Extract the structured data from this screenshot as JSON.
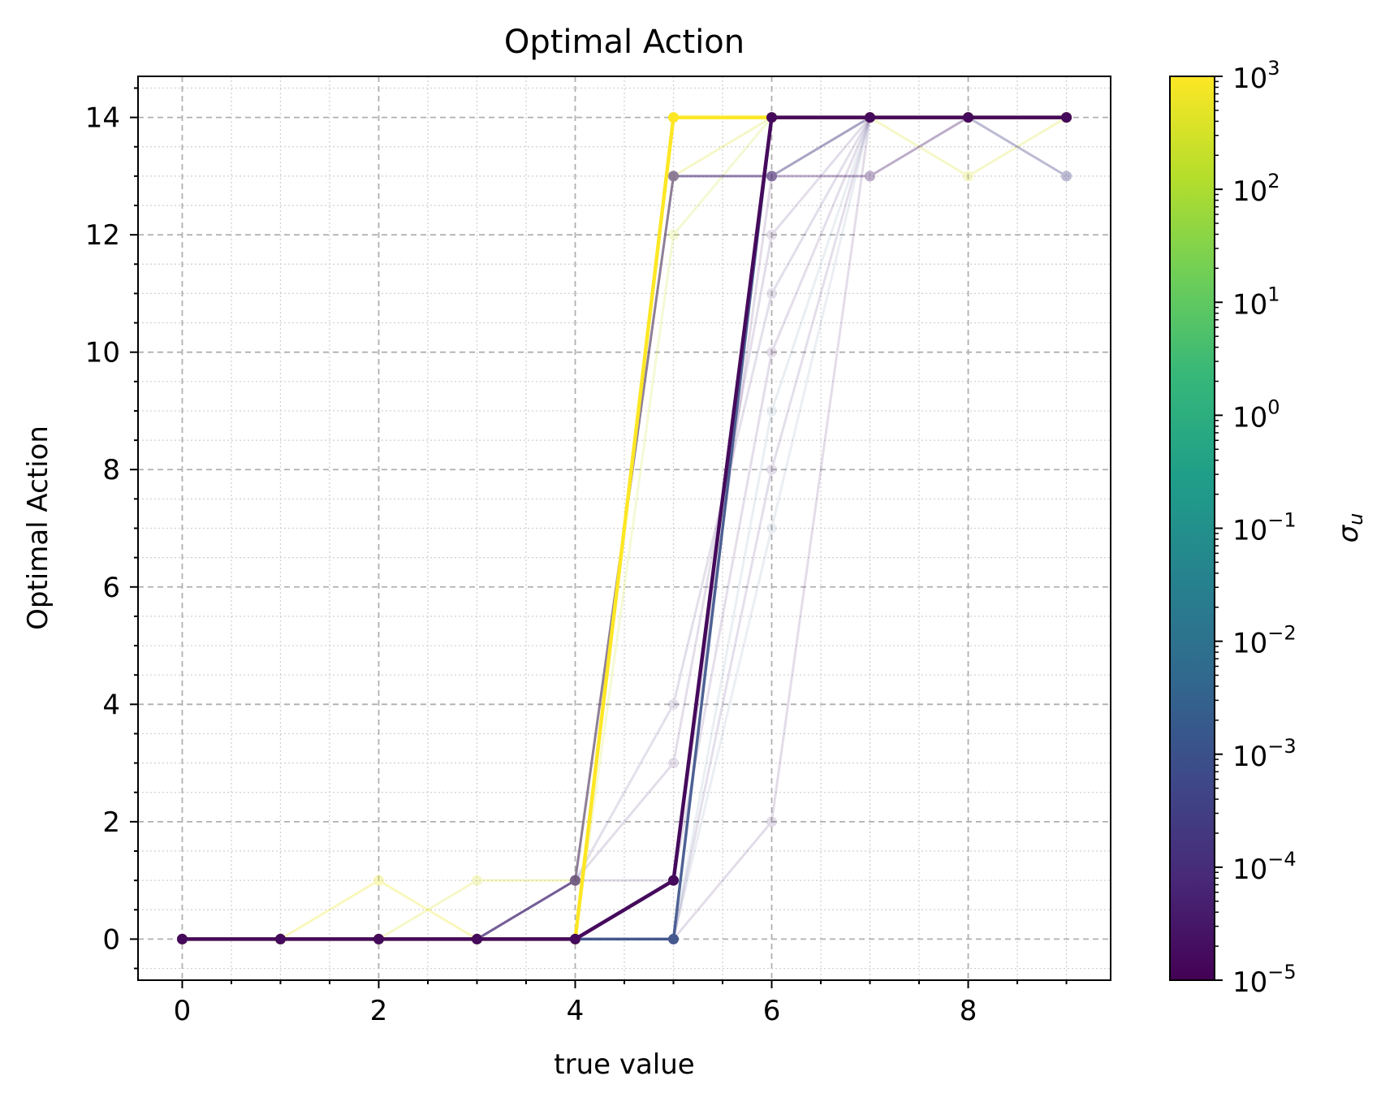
{
  "chart_data": {
    "type": "line",
    "title": "Optimal Action",
    "xlabel": "true value",
    "ylabel": "Optimal Action",
    "xlim": [
      -0.45,
      9.45
    ],
    "ylim": [
      -0.7,
      14.7
    ],
    "xticks": [
      0,
      2,
      4,
      6,
      8
    ],
    "yticks": [
      0,
      2,
      4,
      6,
      8,
      10,
      12,
      14
    ],
    "grid": {
      "major": "dashed",
      "minor": "dotted"
    },
    "colorbar": {
      "label": "σ_u",
      "label_main": "σ",
      "label_sub": "u",
      "scale": "log",
      "colormap": "viridis",
      "range": [
        1e-05,
        1000
      ],
      "tick_exponents": [
        "3",
        "2",
        "1",
        "0",
        "−1",
        "−2",
        "−3",
        "−4",
        "−5"
      ],
      "tick_base": "10",
      "colors": [
        "#440154",
        "#482878",
        "#3e4989",
        "#31688e",
        "#26828e",
        "#1f9e89",
        "#35b779",
        "#6ece58",
        "#b5de2b",
        "#fde725"
      ]
    },
    "x": [
      0,
      1,
      2,
      3,
      4,
      5,
      6,
      7,
      8,
      9
    ],
    "series": [
      {
        "log_sigma": 3,
        "opacity": 1.0,
        "width": 4.5,
        "values": [
          0,
          0,
          0,
          0,
          0,
          14,
          14,
          14,
          14,
          14
        ]
      },
      {
        "log_sigma": 2.8,
        "opacity": 0.3,
        "width": 3,
        "values": [
          0,
          0,
          1,
          0,
          0,
          14,
          14,
          14,
          14,
          14
        ]
      },
      {
        "log_sigma": 2.6,
        "opacity": 0.25,
        "width": 3,
        "values": [
          0,
          0,
          0,
          1,
          1,
          13,
          14,
          14,
          13,
          14
        ]
      },
      {
        "log_sigma": 2.4,
        "opacity": 0.2,
        "width": 3,
        "values": [
          0,
          0,
          0,
          0,
          0,
          12,
          14,
          14,
          14,
          14
        ]
      },
      {
        "log_sigma": -3.5,
        "opacity": 0.35,
        "width": 3,
        "values": [
          0,
          0,
          0,
          0,
          1,
          13,
          13,
          14,
          14,
          13
        ]
      },
      {
        "log_sigma": -4.5,
        "opacity": 0.35,
        "width": 3,
        "values": [
          0,
          0,
          0,
          0,
          1,
          13,
          13,
          13,
          14,
          14
        ]
      },
      {
        "log_sigma": -4.2,
        "opacity": 0.15,
        "width": 3,
        "values": [
          0,
          0,
          0,
          0,
          1,
          1,
          10,
          14,
          14,
          14
        ]
      },
      {
        "log_sigma": -4.0,
        "opacity": 0.15,
        "width": 3,
        "values": [
          0,
          0,
          0,
          0,
          1,
          4,
          11,
          14,
          14,
          14
        ]
      },
      {
        "log_sigma": -4.3,
        "opacity": 0.15,
        "width": 3,
        "values": [
          0,
          0,
          0,
          0,
          1,
          3,
          12,
          14,
          14,
          14
        ]
      },
      {
        "log_sigma": -4.6,
        "opacity": 0.15,
        "width": 3,
        "values": [
          0,
          0,
          0,
          0,
          0,
          1,
          13,
          14,
          14,
          14
        ]
      },
      {
        "log_sigma": -4.4,
        "opacity": 0.15,
        "width": 3,
        "values": [
          0,
          0,
          0,
          0,
          0,
          0,
          2,
          14,
          14,
          14
        ]
      },
      {
        "log_sigma": -2.5,
        "opacity": 0.1,
        "width": 3,
        "values": [
          0,
          0,
          0,
          0,
          0,
          0,
          9,
          14,
          14,
          14
        ]
      },
      {
        "log_sigma": -2.8,
        "opacity": 0.1,
        "width": 3,
        "values": [
          0,
          0,
          0,
          0,
          0,
          0,
          7,
          14,
          14,
          14
        ]
      },
      {
        "log_sigma": -4.1,
        "opacity": 0.15,
        "width": 3,
        "values": [
          0,
          0,
          0,
          0,
          0,
          0,
          8,
          14,
          14,
          14
        ]
      },
      {
        "log_sigma": -3.0,
        "opacity": 0.9,
        "width": 3.5,
        "values": [
          0,
          0,
          0,
          0,
          0,
          0,
          14,
          14,
          14,
          14
        ]
      },
      {
        "log_sigma": -4.8,
        "opacity": 1.0,
        "width": 4.5,
        "values": [
          0,
          0,
          0,
          0,
          0,
          1,
          14,
          14,
          14,
          14
        ]
      }
    ]
  }
}
